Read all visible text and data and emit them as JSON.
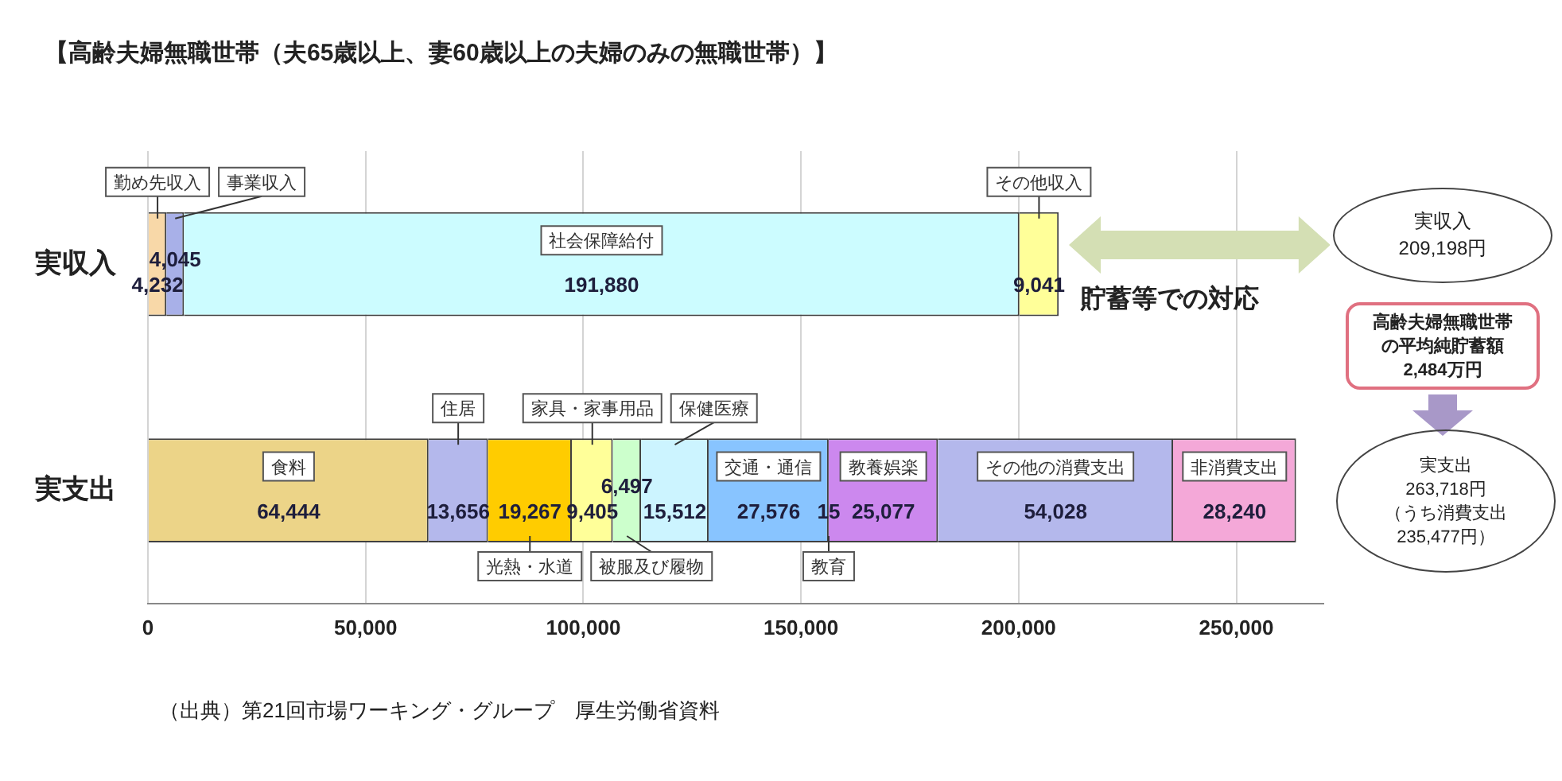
{
  "chart_data": {
    "type": "bar",
    "orientation": "horizontal",
    "stacked": true,
    "title": "【高齢夫婦無職世帯（夫65歳以上、妻60歳以上の夫婦のみの無職世帯）】",
    "categories": [
      "実収入",
      "実支出"
    ],
    "series": [
      {
        "name": "勤め先収入",
        "color": "#f8d8a8",
        "values": [
          4232,
          null
        ],
        "value_labels": [
          "4,232",
          null
        ]
      },
      {
        "name": "事業収入",
        "color": "#a8b0e8",
        "values": [
          4045,
          null
        ],
        "value_labels": [
          "4,045",
          null
        ]
      },
      {
        "name": "社会保障給付",
        "color": "#ccfcff",
        "values": [
          191880,
          null
        ],
        "value_labels": [
          "191,880",
          null
        ]
      },
      {
        "name": "その他収入",
        "color": "#ffff99",
        "values": [
          9041,
          null
        ],
        "value_labels": [
          "9,041",
          null
        ]
      },
      {
        "name": "食料",
        "color": "#ecd488",
        "values": [
          null,
          64444
        ],
        "value_labels": [
          null,
          "64,444"
        ]
      },
      {
        "name": "住居",
        "color": "#b4b8ec",
        "values": [
          null,
          13656
        ],
        "value_labels": [
          null,
          "13,656"
        ]
      },
      {
        "name": "光熱・水道",
        "color": "#ffcc00",
        "values": [
          null,
          19267
        ],
        "value_labels": [
          null,
          "19,267"
        ]
      },
      {
        "name": "家具・家事用品",
        "color": "#ffff99",
        "values": [
          null,
          9405
        ],
        "value_labels": [
          null,
          "9,405"
        ]
      },
      {
        "name": "被服及び履物",
        "color": "#ccffcc",
        "values": [
          null,
          6497
        ],
        "value_labels": [
          null,
          "6,497"
        ]
      },
      {
        "name": "保健医療",
        "color": "#ccf4ff",
        "values": [
          null,
          15512
        ],
        "value_labels": [
          null,
          "15,512"
        ]
      },
      {
        "name": "交通・通信",
        "color": "#88c4ff",
        "values": [
          null,
          27576
        ],
        "value_labels": [
          null,
          "27,576"
        ]
      },
      {
        "name": "教育",
        "color": "#88c4ff",
        "values": [
          null,
          15
        ],
        "value_labels": [
          null,
          "15"
        ]
      },
      {
        "name": "教養娯楽",
        "color": "#cc88ee",
        "values": [
          null,
          25077
        ],
        "value_labels": [
          null,
          "25,077"
        ]
      },
      {
        "name": "その他の消費支出",
        "color": "#b4b8ec",
        "values": [
          null,
          54028
        ],
        "value_labels": [
          null,
          "54,028"
        ]
      },
      {
        "name": "非消費支出",
        "color": "#f4a8d8",
        "values": [
          null,
          28240
        ],
        "value_labels": [
          null,
          "28,240"
        ]
      }
    ],
    "xlim": [
      0,
      270000
    ],
    "xticks": [
      0,
      {
        "value": 50000,
        "label": "50,000"
      },
      {
        "value": 100000,
        "label": "100,000"
      },
      {
        "value": 150000,
        "label": "150,000"
      },
      {
        "value": 200000,
        "label": "200,000"
      },
      {
        "value": 250000,
        "label": "250,000"
      }
    ],
    "grid": "x",
    "annotations": [
      "貯蓄等での対応",
      "実収入",
      "209,198円",
      "高齢夫婦無職世帯の平均純貯蓄額",
      "2,484万円",
      "実支出",
      "263,718円",
      "（うち消費支出235,477円）",
      "（出典）第21回市場ワーキング・グループ　厚生労働省資料"
    ]
  }
}
